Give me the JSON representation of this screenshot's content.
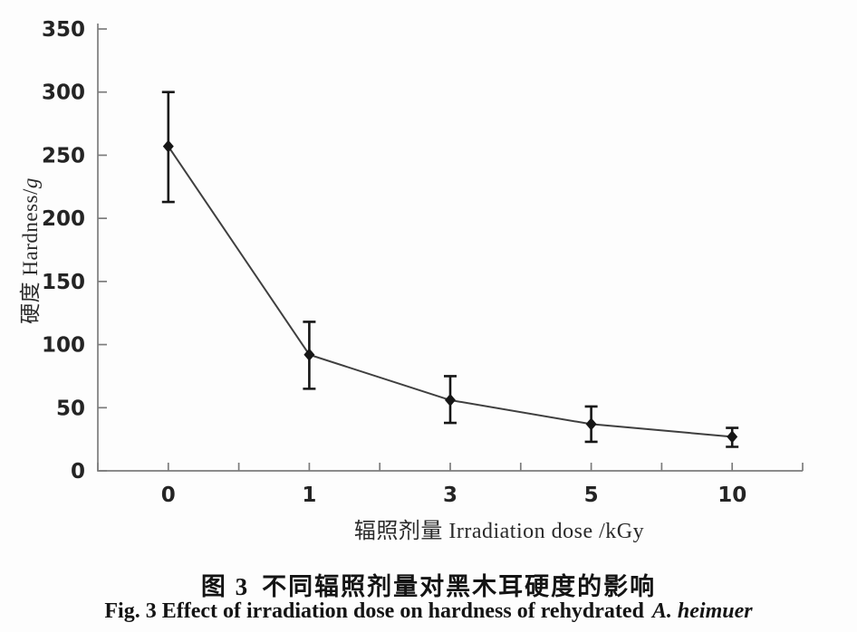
{
  "figure": {
    "caption_zh_figno": "图 3",
    "caption_zh_text": "不同辐照剂量对黑木耳硬度的影响",
    "caption_en_prefix": "Fig. 3  Effect of irradiation dose on hardness of rehydrated",
    "caption_en_species_italic": "A. heimuer"
  },
  "axes": {
    "x_label": "辐照剂量 Irradiation dose /kGy",
    "y_label_main": "硬度 Hardness/",
    "y_label_unit_italic": "g"
  },
  "chart_data": {
    "type": "line",
    "title": "",
    "xlabel": "辐照剂量 Irradiation dose /kGy",
    "ylabel": "硬度 Hardness/g",
    "categories": [
      "0",
      "1",
      "3",
      "5",
      "10"
    ],
    "series": [
      {
        "name": "hardness",
        "values": [
          257,
          92,
          56,
          37,
          27
        ],
        "error_low": [
          213,
          65,
          38,
          23,
          19
        ],
        "error_high": [
          300,
          118,
          75,
          51,
          34
        ]
      }
    ],
    "ylim": [
      0,
      350
    ],
    "yticks": [
      0,
      50,
      100,
      150,
      200,
      250,
      300,
      350
    ],
    "grid": false,
    "legend": "none",
    "marker": "diamond",
    "colors": {
      "line": "#3f3f3f",
      "marker": "#161616",
      "error_bar": "#161616",
      "axis": "#7c7c7c",
      "tick_label": "#242424"
    }
  }
}
